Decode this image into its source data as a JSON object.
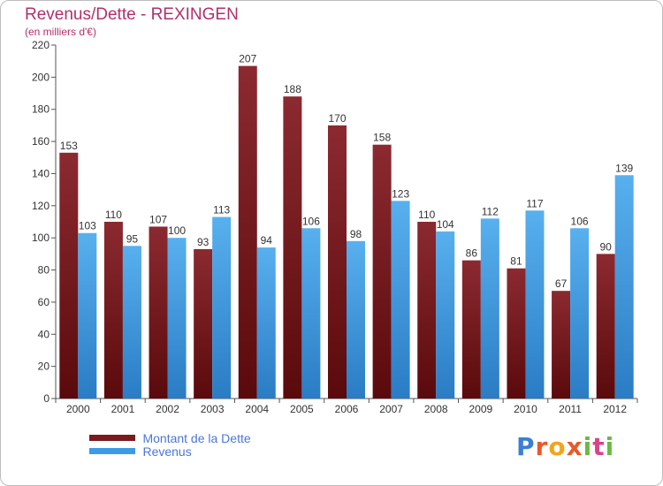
{
  "chart_data": {
    "type": "bar",
    "title": "Revenus/Dette - REXINGEN",
    "subtitle": "(en milliers d'€)",
    "categories": [
      "2000",
      "2001",
      "2002",
      "2003",
      "2004",
      "2005",
      "2006",
      "2007",
      "2008",
      "2009",
      "2010",
      "2011",
      "2012"
    ],
    "series": [
      {
        "name": "Montant de la Dette",
        "color": "#7a1a1d",
        "values": [
          153,
          110,
          107,
          93,
          207,
          188,
          170,
          158,
          110,
          86,
          81,
          67,
          90
        ]
      },
      {
        "name": "Revenus",
        "color": "#3d9be6",
        "values": [
          103,
          95,
          100,
          113,
          94,
          106,
          98,
          123,
          104,
          112,
          117,
          106,
          139
        ]
      }
    ],
    "ylim": [
      0,
      220
    ],
    "yticks": [
      0,
      20,
      40,
      60,
      80,
      100,
      120,
      140,
      160,
      180,
      200,
      220
    ],
    "grid": false,
    "data_labels": true,
    "legend_position": "bottom-left"
  },
  "logo": {
    "text": "Proxiti",
    "letters": [
      "P",
      "r",
      "o",
      "x",
      "i",
      "t",
      "i"
    ]
  }
}
